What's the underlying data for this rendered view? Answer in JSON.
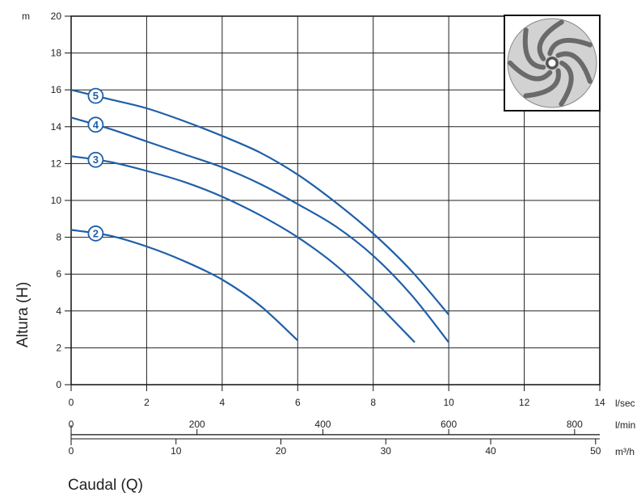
{
  "chart_data": {
    "type": "line",
    "xlabel": "Caudal (Q)",
    "ylabel": "Altura (H)",
    "y_unit": "m",
    "xlim": [
      0,
      14
    ],
    "ylim": [
      0,
      20
    ],
    "x_ticks": [
      0,
      2,
      4,
      6,
      8,
      10,
      12,
      14
    ],
    "y_ticks": [
      0,
      2,
      4,
      6,
      8,
      10,
      12,
      14,
      16,
      18,
      20
    ],
    "grid": true,
    "x_unit": "l/sec",
    "secondary_axes": [
      {
        "unit": "l/min",
        "ticks": [
          0,
          200,
          400,
          600,
          800
        ],
        "max": 840
      },
      {
        "unit": "m³/h",
        "ticks": [
          0,
          10,
          20,
          30,
          40,
          50
        ],
        "max": 50.4
      }
    ],
    "line_color": "#1f5fa8",
    "series": [
      {
        "name": "5",
        "x": [
          0,
          1,
          2,
          3,
          4,
          5,
          6,
          7,
          8,
          9,
          10
        ],
        "y": [
          16.0,
          15.5,
          15.0,
          14.3,
          13.5,
          12.6,
          11.4,
          9.9,
          8.2,
          6.2,
          3.8
        ]
      },
      {
        "name": "4",
        "x": [
          0,
          1,
          2,
          3,
          4,
          5,
          6,
          7,
          8,
          9,
          10
        ],
        "y": [
          14.5,
          13.9,
          13.2,
          12.5,
          11.8,
          10.9,
          9.8,
          8.6,
          7.0,
          4.9,
          2.3
        ]
      },
      {
        "name": "3",
        "x": [
          0,
          1,
          2,
          3,
          4,
          5,
          6,
          7,
          8,
          9.1
        ],
        "y": [
          12.4,
          12.1,
          11.6,
          11.0,
          10.2,
          9.2,
          8.0,
          6.5,
          4.6,
          2.3
        ]
      },
      {
        "name": "2",
        "x": [
          0,
          1,
          2,
          3,
          4,
          5,
          6
        ],
        "y": [
          8.4,
          8.1,
          7.5,
          6.7,
          5.7,
          4.3,
          2.4
        ]
      }
    ],
    "inset_image": "impeller-icon"
  }
}
